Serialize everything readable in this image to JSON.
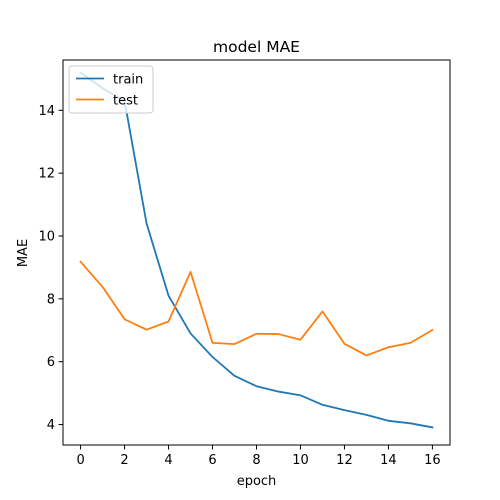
{
  "chart_data": {
    "type": "line",
    "title": "model MAE",
    "xlabel": "epoch",
    "ylabel": "MAE",
    "x": [
      0,
      1,
      2,
      3,
      4,
      5,
      6,
      7,
      8,
      9,
      10,
      11,
      12,
      13,
      14,
      15,
      16
    ],
    "series": [
      {
        "name": "train",
        "color": "#1f77b4",
        "values": [
          15.2,
          14.7,
          14.3,
          10.4,
          8.1,
          6.9,
          6.15,
          5.55,
          5.22,
          5.05,
          4.93,
          4.63,
          4.46,
          4.31,
          4.12,
          4.04,
          3.91
        ]
      },
      {
        "name": "test",
        "color": "#ff7f0e",
        "values": [
          9.18,
          8.38,
          7.35,
          7.02,
          7.28,
          8.86,
          6.6,
          6.56,
          6.89,
          6.88,
          6.7,
          7.6,
          6.57,
          6.2,
          6.46,
          6.6,
          7.01
        ]
      }
    ],
    "xlim": [
      -0.8,
      16.8
    ],
    "ylim": [
      3.35,
      15.6
    ],
    "xticks": [
      0,
      2,
      4,
      6,
      8,
      10,
      12,
      14,
      16
    ],
    "yticks": [
      4,
      6,
      8,
      10,
      12,
      14
    ],
    "grid": false,
    "legend_position": "top-left"
  }
}
